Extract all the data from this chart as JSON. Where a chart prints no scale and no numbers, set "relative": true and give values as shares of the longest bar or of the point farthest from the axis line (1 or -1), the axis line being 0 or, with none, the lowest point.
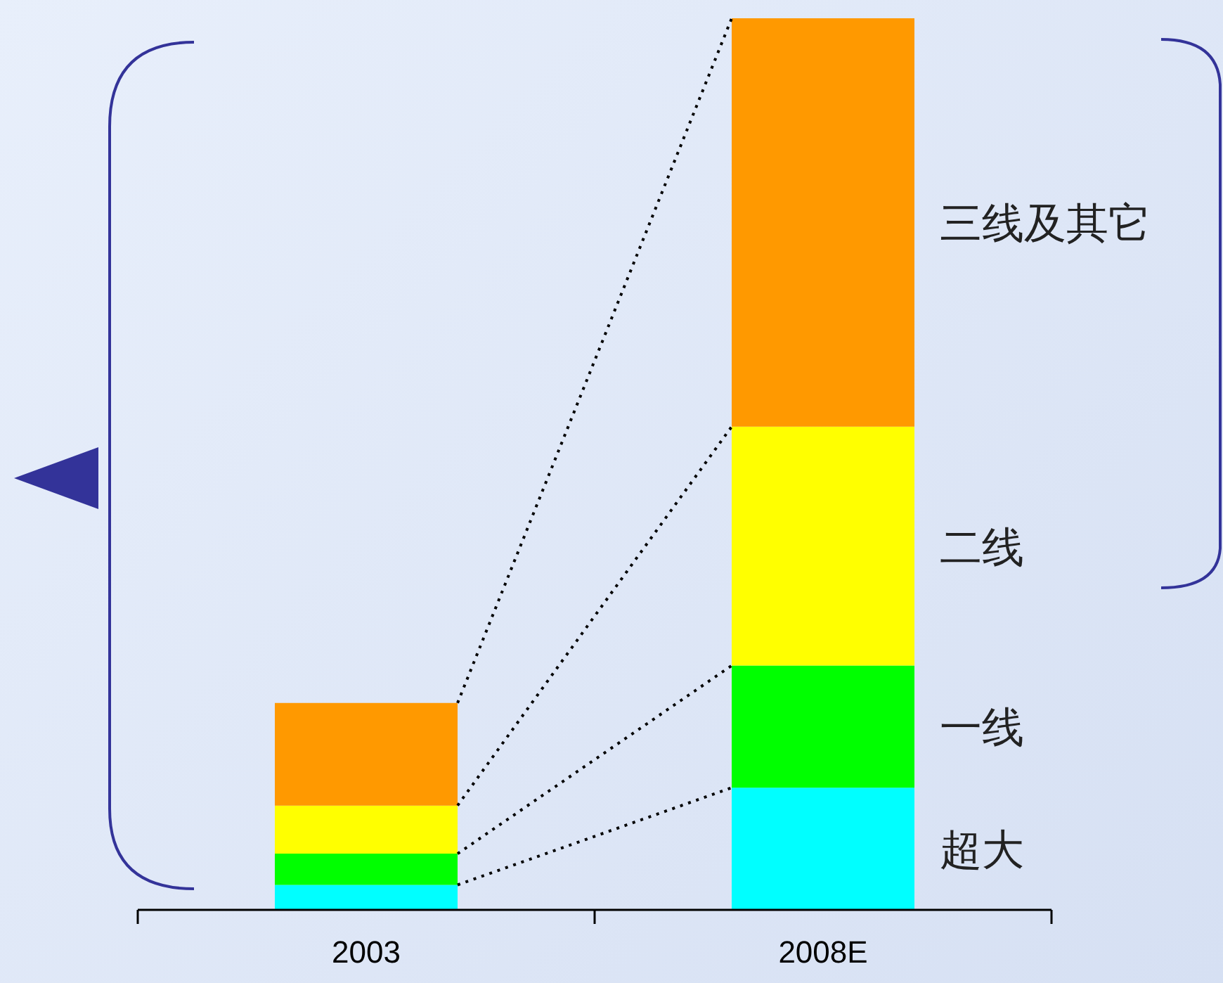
{
  "chart_data": {
    "type": "bar",
    "stacked": true,
    "relative": true,
    "categories": [
      "2003",
      "2008E"
    ],
    "series": [
      {
        "name": "超大",
        "color": "#00ffff",
        "values": [
          0.028,
          0.137
        ]
      },
      {
        "name": "一线",
        "color": "#00ff00",
        "values": [
          0.035,
          0.137
        ]
      },
      {
        "name": "二线",
        "color": "#ffff00",
        "values": [
          0.054,
          0.268
        ]
      },
      {
        "name": "三线及其它",
        "color": "#ff9900",
        "values": [
          0.115,
          0.458
        ]
      }
    ]
  }
}
